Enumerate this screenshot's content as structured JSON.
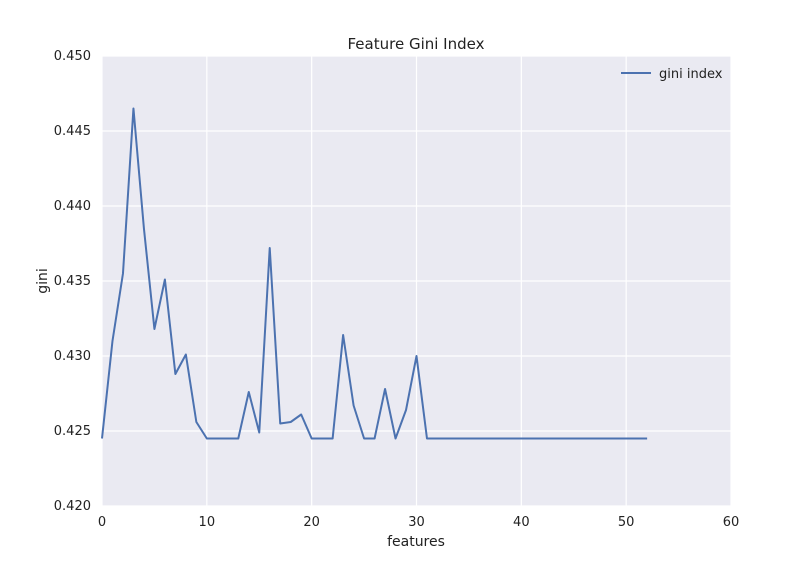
{
  "chart_data": {
    "type": "line",
    "title": "Feature Gini Index",
    "xlabel": "features",
    "ylabel": "gini",
    "xlim": [
      0,
      60
    ],
    "ylim": [
      0.42,
      0.45
    ],
    "xticks": [
      0,
      10,
      20,
      30,
      40,
      50,
      60
    ],
    "yticks": [
      0.42,
      0.425,
      0.43,
      0.435,
      0.44,
      0.445,
      0.45
    ],
    "xtick_labels": [
      "0",
      "10",
      "20",
      "30",
      "40",
      "50",
      "60"
    ],
    "ytick_labels": [
      "0.420",
      "0.425",
      "0.430",
      "0.435",
      "0.440",
      "0.445",
      "0.450"
    ],
    "grid": true,
    "legend_position": "top-right",
    "colors": {
      "background": "#EAEAF2",
      "grid": "#FFFFFF",
      "line": "#4C72B0"
    },
    "series": [
      {
        "name": "gini index",
        "x": [
          0,
          1,
          2,
          3,
          4,
          5,
          6,
          7,
          8,
          9,
          10,
          11,
          12,
          13,
          14,
          15,
          16,
          17,
          18,
          19,
          20,
          21,
          22,
          23,
          24,
          25,
          26,
          27,
          28,
          29,
          30,
          31,
          32,
          33,
          34,
          35,
          36,
          37,
          38,
          39,
          40,
          41,
          42,
          43,
          44,
          45,
          46,
          47,
          48,
          49,
          50,
          51,
          52
        ],
        "y": [
          0.4245,
          0.431,
          0.4355,
          0.4465,
          0.4385,
          0.4318,
          0.4351,
          0.4288,
          0.4301,
          0.4256,
          0.4245,
          0.4245,
          0.4245,
          0.4245,
          0.4276,
          0.4249,
          0.4372,
          0.4255,
          0.4256,
          0.4261,
          0.4245,
          0.4245,
          0.4245,
          0.4314,
          0.4267,
          0.4245,
          0.4245,
          0.4278,
          0.4245,
          0.4264,
          0.43,
          0.4245,
          0.4245,
          0.4245,
          0.4245,
          0.4245,
          0.4245,
          0.4245,
          0.4245,
          0.4245,
          0.4245,
          0.4245,
          0.4245,
          0.4245,
          0.4245,
          0.4245,
          0.4245,
          0.4245,
          0.4245,
          0.4245,
          0.4245,
          0.4245,
          0.4245
        ]
      }
    ]
  }
}
